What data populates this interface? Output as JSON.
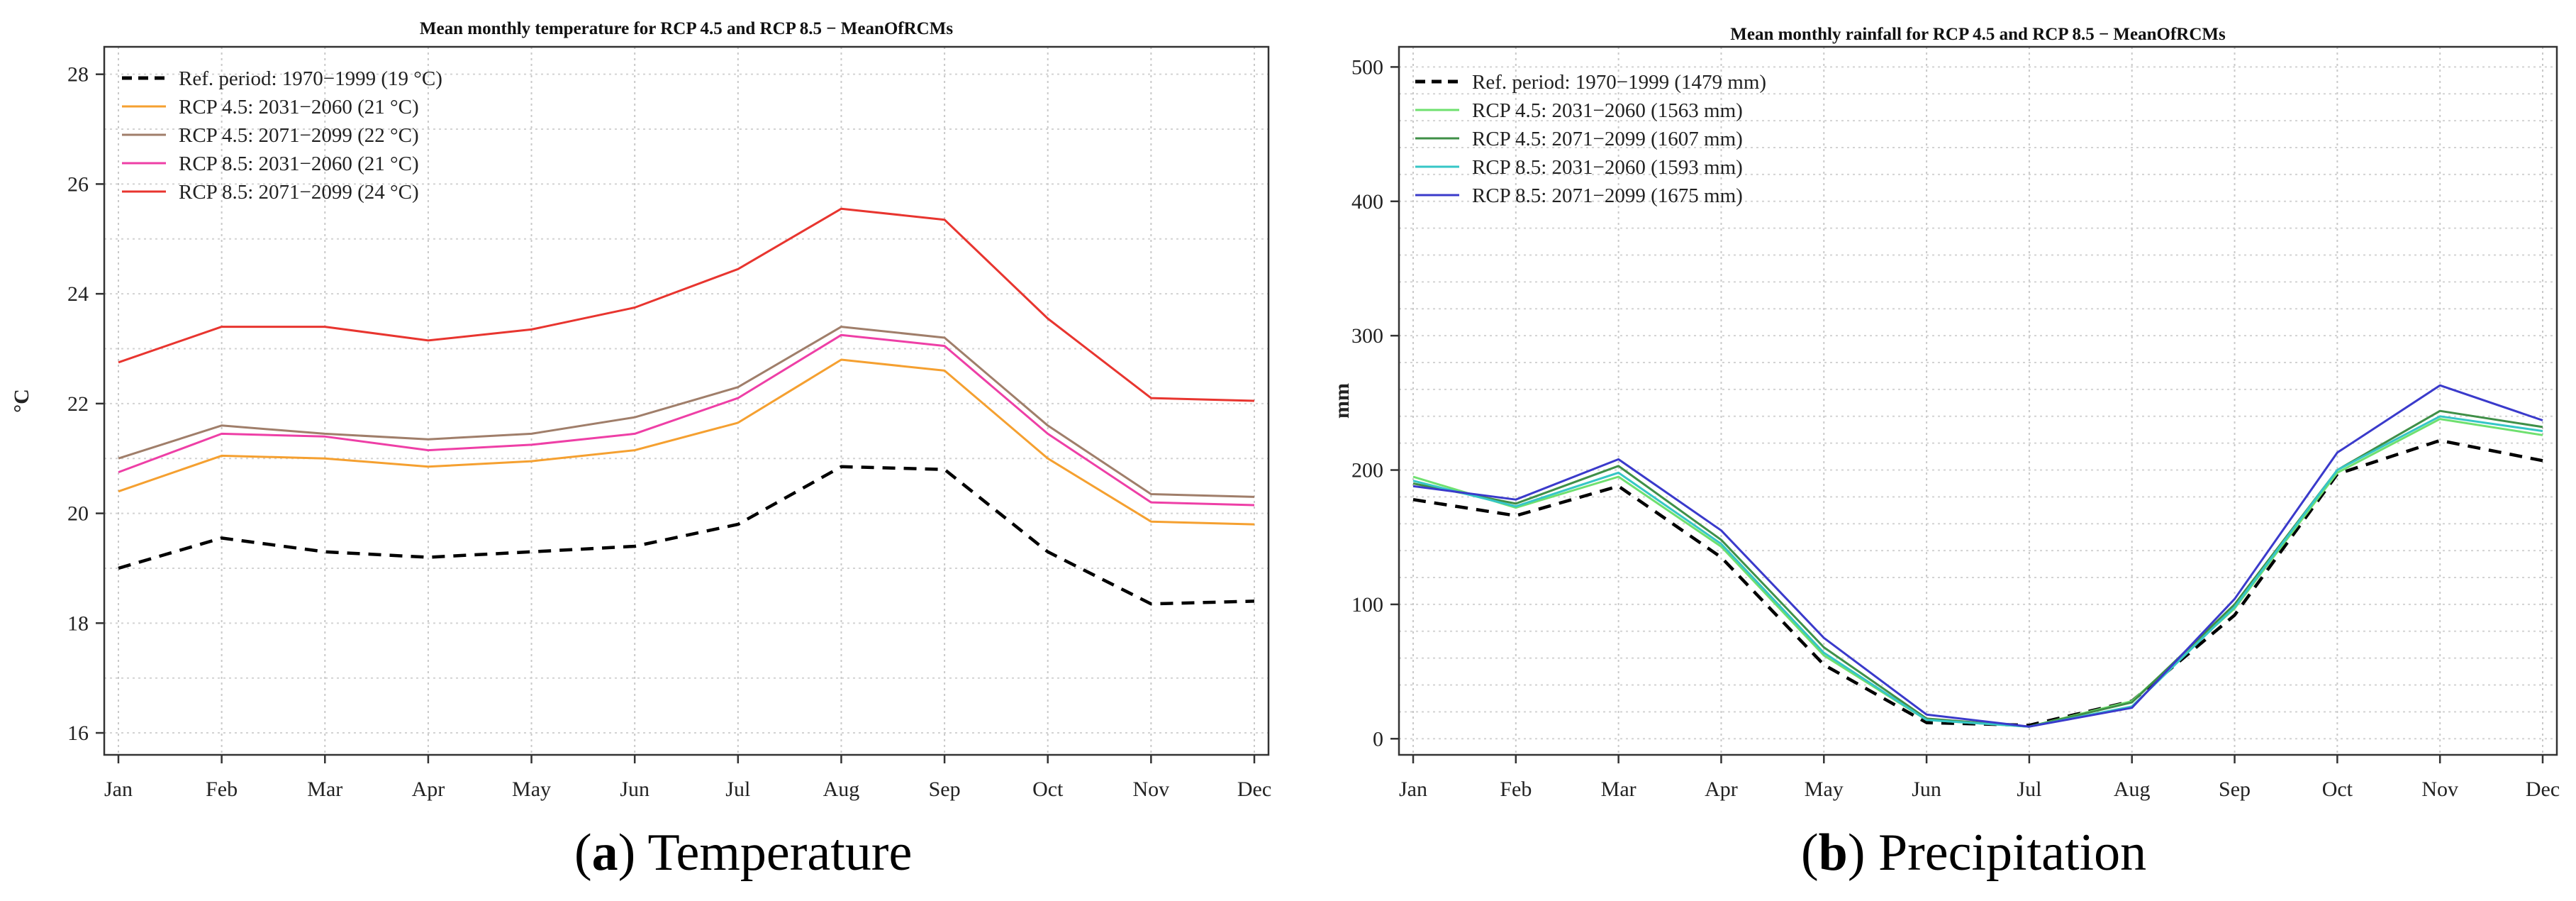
{
  "chart_data": [
    {
      "type": "line",
      "title": "Mean monthly temperature for RCP 4.5 and RCP 8.5 − MeanOfRCMs",
      "xlabel": "",
      "ylabel": "°C",
      "ylim": [
        15.6,
        28.5
      ],
      "yticks": [
        "16",
        "18",
        "20",
        "22",
        "24",
        "26",
        "28"
      ],
      "grid": true,
      "legend": "top-left",
      "categories": [
        "Jan",
        "Feb",
        "Mar",
        "Apr",
        "May",
        "Jun",
        "Jul",
        "Aug",
        "Sep",
        "Oct",
        "Nov",
        "Dec"
      ],
      "series": [
        {
          "name": "Ref. period: 1970−1999 (19 °C)",
          "color": "#000000",
          "dashed": true,
          "values": [
            19.0,
            19.55,
            19.3,
            19.2,
            19.3,
            19.4,
            19.8,
            20.85,
            20.8,
            19.3,
            18.35,
            18.4
          ]
        },
        {
          "name": "RCP 4.5: 2031−2060 (21 °C)",
          "color": "#f5a030",
          "dashed": false,
          "values": [
            20.4,
            21.05,
            21.0,
            20.85,
            20.95,
            21.15,
            21.65,
            22.8,
            22.6,
            21.0,
            19.85,
            19.8
          ]
        },
        {
          "name": "RCP 4.5: 2071−2099 (22 °C)",
          "color": "#a07e6a",
          "dashed": false,
          "values": [
            21.0,
            21.6,
            21.45,
            21.35,
            21.45,
            21.75,
            22.3,
            23.4,
            23.2,
            21.6,
            20.35,
            20.3
          ]
        },
        {
          "name": "RCP 8.5: 2031−2060 (21 °C)",
          "color": "#ee3fa6",
          "dashed": false,
          "values": [
            20.75,
            21.45,
            21.4,
            21.15,
            21.25,
            21.45,
            22.1,
            23.25,
            23.05,
            21.45,
            20.2,
            20.15
          ]
        },
        {
          "name": "RCP 8.5: 2071−2099 (24 °C)",
          "color": "#e8352f",
          "dashed": false,
          "values": [
            22.75,
            23.4,
            23.4,
            23.15,
            23.35,
            23.75,
            24.45,
            25.55,
            25.35,
            23.55,
            22.1,
            22.05
          ]
        }
      ]
    },
    {
      "type": "line",
      "title": "Mean monthly rainfall for RCP 4.5 and RCP 8.5 − MeanOfRCMs",
      "xlabel": "",
      "ylabel": "mm",
      "ylim": [
        -12,
        515
      ],
      "yticks": [
        "0",
        "100",
        "200",
        "300",
        "400",
        "500"
      ],
      "grid": true,
      "legend": "top-left",
      "categories": [
        "Jan",
        "Feb",
        "Mar",
        "Apr",
        "May",
        "Jun",
        "Jul",
        "Aug",
        "Sep",
        "Oct",
        "Nov",
        "Dec"
      ],
      "series": [
        {
          "name": "Ref. period: 1970−1999 (1479 mm)",
          "color": "#000000",
          "dashed": true,
          "values": [
            178,
            166,
            188,
            135,
            55,
            12,
            10,
            28,
            92,
            197,
            222,
            207
          ]
        },
        {
          "name": "RCP 4.5: 2031−2060 (1563 mm)",
          "color": "#6fe06f",
          "dashed": false,
          "values": [
            195,
            172,
            195,
            143,
            62,
            14,
            9,
            28,
            97,
            198,
            238,
            226
          ]
        },
        {
          "name": "RCP 4.5: 2071−2099 (1607 mm)",
          "color": "#3f8f47",
          "dashed": false,
          "values": [
            190,
            175,
            203,
            148,
            68,
            15,
            9,
            27,
            100,
            200,
            244,
            232
          ]
        },
        {
          "name": "RCP 8.5: 2031−2060 (1593 mm)",
          "color": "#36c6c6",
          "dashed": false,
          "values": [
            192,
            173,
            198,
            145,
            64,
            14,
            9,
            24,
            98,
            200,
            240,
            229
          ]
        },
        {
          "name": "RCP 8.5: 2071−2099 (1675 mm)",
          "color": "#3a3acb",
          "dashed": false,
          "values": [
            188,
            178,
            208,
            155,
            75,
            18,
            9,
            23,
            104,
            213,
            263,
            237
          ]
        }
      ]
    }
  ],
  "captions": [
    {
      "letter": "a",
      "text": "Temperature"
    },
    {
      "letter": "b",
      "text": "Precipitation"
    }
  ]
}
